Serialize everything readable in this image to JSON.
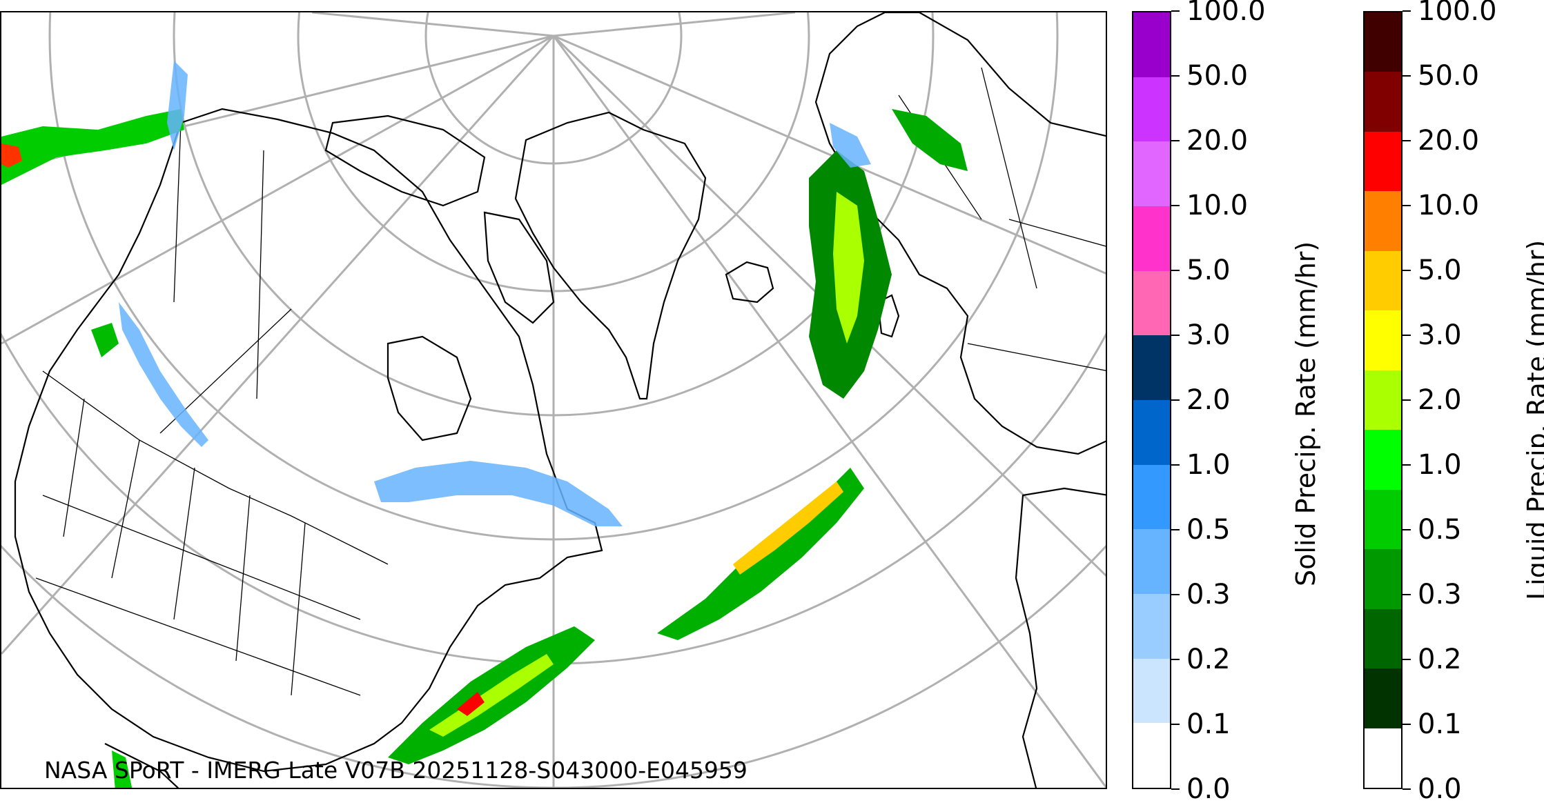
{
  "map": {
    "caption": "NASA SPoRT - IMERG Late V07B 20251128-S043000-E045959",
    "projection": "north-polar-stereographic",
    "colors": {
      "coastline": "#000000",
      "graticule": "#b0b0b0",
      "background": "#ffffff"
    }
  },
  "colorbars": {
    "solid": {
      "title": "Solid Precip. Rate (mm/hr)",
      "ticks": [
        "0.0",
        "0.1",
        "0.2",
        "0.3",
        "0.5",
        "1.0",
        "2.0",
        "3.0",
        "5.0",
        "10.0",
        "20.0",
        "50.0",
        "100.0"
      ],
      "colors": [
        "#ffffff",
        "#cce5ff",
        "#99ccff",
        "#66b3ff",
        "#3399ff",
        "#0066cc",
        "#003366",
        "#ff66b3",
        "#ff33cc",
        "#e066ff",
        "#cc33ff",
        "#9900cc"
      ]
    },
    "liquid": {
      "title": "Liquid Precip. Rate (mm/hr)",
      "ticks": [
        "0.0",
        "0.1",
        "0.2",
        "0.3",
        "0.5",
        "1.0",
        "2.0",
        "3.0",
        "5.0",
        "10.0",
        "20.0",
        "50.0",
        "100.0"
      ],
      "colors": [
        "#ffffff",
        "#003300",
        "#006600",
        "#009900",
        "#00cc00",
        "#00ff00",
        "#aaff00",
        "#ffff00",
        "#ffcc00",
        "#ff8000",
        "#ff0000",
        "#800000",
        "#400000"
      ]
    }
  }
}
